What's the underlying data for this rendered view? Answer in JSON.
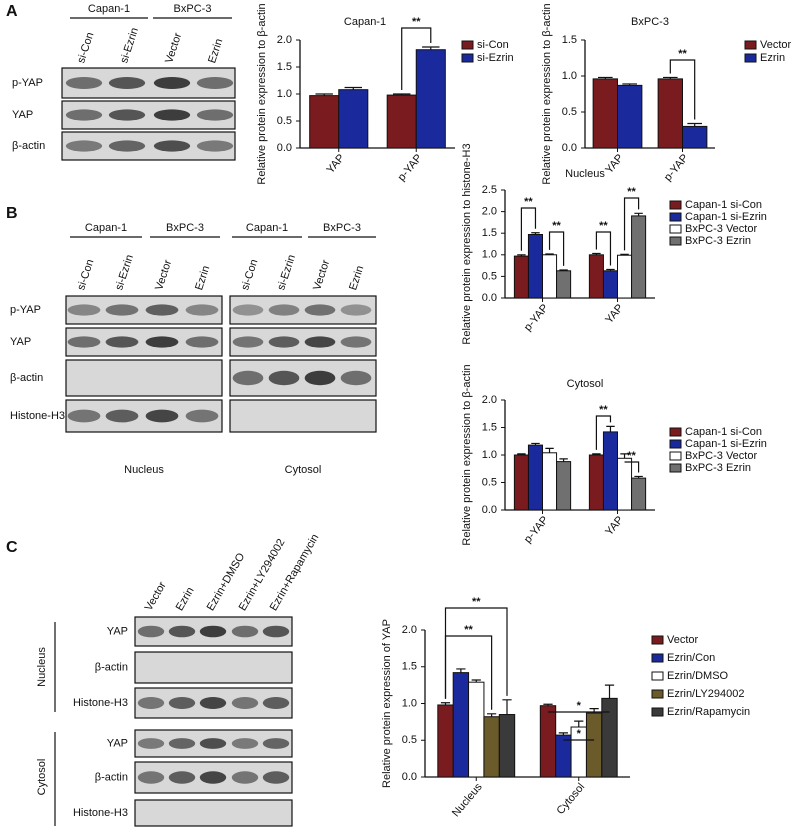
{
  "blots": {
    "A": {
      "label": "A",
      "groups": [
        "Capan-1",
        "BxPC-3"
      ],
      "lanes": [
        "si-Con",
        "si-Ezrin",
        "Vector",
        "Ezrin"
      ],
      "rows": [
        "p-YAP",
        "YAP",
        "β-actin"
      ]
    },
    "B": {
      "label": "B",
      "groups": [
        "Capan-1",
        "BxPC-3",
        "Capan-1",
        "BxPC-3"
      ],
      "lanes": [
        "si-Con",
        "si-Ezrin",
        "Vector",
        "Ezrin",
        "si-Con",
        "si-Ezrin",
        "Vector",
        "Ezrin"
      ],
      "rows": [
        "p-YAP",
        "YAP",
        "β-actin",
        "Histone-H3"
      ],
      "sections": [
        "Nucleus",
        "Cytosol"
      ]
    },
    "C": {
      "label": "C",
      "lanes": [
        "Vector",
        "Ezrin",
        "Ezrin+DMSO",
        "Ezrin+LY294002",
        "Ezrin+Rapamycin"
      ],
      "sections": [
        {
          "name": "Nucleus",
          "rows": [
            "YAP",
            "β-actin",
            "Histone-H3"
          ]
        },
        {
          "name": "Cytosol",
          "rows": [
            "YAP",
            "β-actin",
            "Histone-H3"
          ]
        }
      ]
    }
  },
  "chart_data": [
    {
      "type": "bar",
      "title": "Capan-1",
      "y_label": "Relative protein expression to β-actin",
      "categories": [
        "YAP",
        "p-YAP"
      ],
      "series": [
        {
          "name": "si-Con",
          "color": "#7a1b1f",
          "values": [
            0.97,
            0.98
          ],
          "errors": [
            0.03,
            0.02
          ]
        },
        {
          "name": "si-Ezrin",
          "color": "#1a2a9c",
          "values": [
            1.08,
            1.82
          ],
          "errors": [
            0.04,
            0.05
          ]
        }
      ],
      "ylim": [
        0,
        2
      ],
      "yticks": [
        {
          "value": 0,
          "label": "0.0"
        },
        0.5,
        {
          "value": 1,
          "label": "1.0"
        },
        1.5,
        {
          "value": 2,
          "label": "2.0"
        }
      ],
      "annotations": [
        "**"
      ]
    },
    {
      "type": "bar",
      "title": "BxPC-3",
      "y_label": "Relative protein expression to β-actin",
      "categories": [
        "YAP",
        "p-YAP"
      ],
      "series": [
        {
          "name": "Vector",
          "color": "#7a1b1f",
          "values": [
            0.96,
            0.96
          ],
          "errors": [
            0.02,
            0.02
          ]
        },
        {
          "name": "Ezrin",
          "color": "#1a2a9c",
          "values": [
            0.87,
            0.3
          ],
          "errors": [
            0.02,
            0.04
          ]
        }
      ],
      "ylim": [
        0,
        1.5
      ],
      "yticks": [
        {
          "value": 0,
          "label": "0.0"
        },
        0.5,
        {
          "value": 1,
          "label": "1.0"
        },
        1.5
      ],
      "annotations": [
        "**"
      ]
    },
    {
      "type": "bar",
      "title": "Nucleus",
      "y_label": "Relative protein expression to histone-H3",
      "categories": [
        "p-YAP",
        "YAP"
      ],
      "series": [
        {
          "name": "Capan-1 si-Con",
          "color": "#7a1b1f",
          "values": [
            0.97,
            1.0
          ],
          "errors": [
            0.03,
            0.03
          ]
        },
        {
          "name": "Capan-1 si-Ezrin",
          "color": "#1a2a9c",
          "values": [
            1.47,
            0.63
          ],
          "errors": [
            0.04,
            0.03
          ]
        },
        {
          "name": "BxPC-3 Vector",
          "color": "#ffffff",
          "values": [
            1.0,
            0.99
          ],
          "errors": [
            0.02,
            0.02
          ]
        },
        {
          "name": "BxPC-3 Ezrin",
          "color": "#707070",
          "values": [
            0.63,
            1.9
          ],
          "errors": [
            0.02,
            0.06
          ]
        }
      ],
      "ylim": [
        0,
        2.5
      ],
      "yticks": [
        {
          "value": 0,
          "label": "0.0"
        },
        0.5,
        {
          "value": 1,
          "label": "1.0"
        },
        1.5,
        {
          "value": 2,
          "label": "2.0"
        },
        2.5
      ],
      "annotations": [
        "**",
        "**",
        "**",
        "**"
      ]
    },
    {
      "type": "bar",
      "title": "Cytosol",
      "y_label": "Relative protein expression to β-actin",
      "categories": [
        "p-YAP",
        "YAP"
      ],
      "series": [
        {
          "name": "Capan-1 si-Con",
          "color": "#7a1b1f",
          "values": [
            1.0,
            1.0
          ],
          "errors": [
            0.02,
            0.02
          ]
        },
        {
          "name": "Capan-1 si-Ezrin",
          "color": "#1a2a9c",
          "values": [
            1.18,
            1.42
          ],
          "errors": [
            0.03,
            0.1
          ]
        },
        {
          "name": "BxPC-3 Vector",
          "color": "#ffffff",
          "values": [
            1.04,
            0.94
          ],
          "errors": [
            0.08,
            0.08
          ]
        },
        {
          "name": "BxPC-3 Ezrin",
          "color": "#707070",
          "values": [
            0.88,
            0.58
          ],
          "errors": [
            0.05,
            0.03
          ]
        }
      ],
      "ylim": [
        0,
        2
      ],
      "yticks": [
        {
          "value": 0,
          "label": "0.0"
        },
        0.5,
        {
          "value": 1,
          "label": "1.0"
        },
        1.5,
        {
          "value": 2,
          "label": "2.0"
        }
      ],
      "annotations": [
        "**",
        "**"
      ]
    },
    {
      "type": "bar",
      "y_label": "Relative protein expression of YAP",
      "categories": [
        "Nucleus",
        "Cytosol"
      ],
      "series": [
        {
          "name": "Vector",
          "color": "#7a1b1f",
          "values": [
            0.98,
            0.97
          ],
          "errors": [
            0.03,
            0.02
          ]
        },
        {
          "name": "Ezrin/Con",
          "color": "#1a2a9c",
          "values": [
            1.42,
            0.57
          ],
          "errors": [
            0.05,
            0.03
          ]
        },
        {
          "name": "Ezrin/DMSO",
          "color": "#ffffff",
          "values": [
            1.29,
            0.68
          ],
          "errors": [
            0.03,
            0.08
          ]
        },
        {
          "name": "Ezrin/LY294002",
          "color": "#6b5a2a",
          "values": [
            0.82,
            0.87
          ],
          "errors": [
            0.04,
            0.06
          ]
        },
        {
          "name": "Ezrin/Rapamycin",
          "color": "#3a3a3a",
          "values": [
            0.85,
            1.07
          ],
          "errors": [
            0.2,
            0.18
          ]
        }
      ],
      "ylim": [
        0,
        2
      ],
      "yticks": [
        {
          "value": 0,
          "label": "0.0"
        },
        0.5,
        {
          "value": 1,
          "label": "1.0"
        },
        1.5,
        {
          "value": 2,
          "label": "2.0"
        }
      ],
      "annotations": [
        "**",
        "**",
        "*",
        "*"
      ]
    }
  ]
}
